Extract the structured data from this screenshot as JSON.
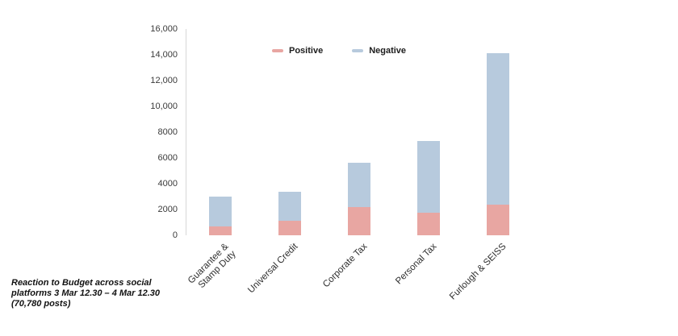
{
  "chart_data": {
    "type": "bar",
    "stacked": true,
    "title": "",
    "xlabel": "",
    "ylabel": "",
    "categories": [
      "Guarantee &\nStamp Duty",
      "Universal Credit",
      "Corporate Tax",
      "Personal Tax",
      "Furlough & SEISS"
    ],
    "series": [
      {
        "name": "Positive",
        "color": "#e8a6a2",
        "values": [
          700,
          1100,
          2200,
          1750,
          2400
        ]
      },
      {
        "name": "Negative",
        "color": "#b7cadd",
        "values": [
          2300,
          2300,
          3450,
          5550,
          11700
        ]
      }
    ],
    "totals": [
      3000,
      3400,
      5650,
      7300,
      14100
    ],
    "ylim": [
      0,
      16000
    ],
    "ytick_step": 2000,
    "ytick_labels": [
      "0",
      "2000",
      "4000",
      "6000",
      "8000",
      "10,000",
      "12,000",
      "14,000",
      "16,000"
    ],
    "legend_position": "top-center",
    "grid": false
  },
  "caption": {
    "line1": "Reaction to Budget across social",
    "line2": "platforms  3 Mar 12.30 – 4 Mar 12.30",
    "line3": "(70,780 posts)"
  }
}
